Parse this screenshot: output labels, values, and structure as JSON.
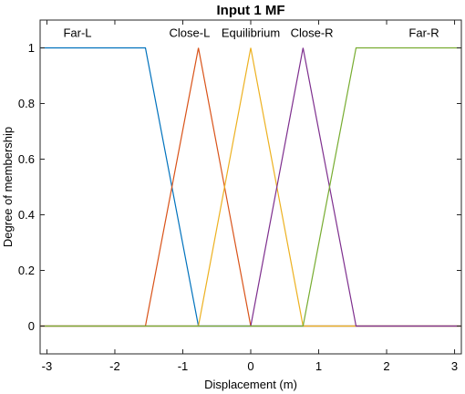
{
  "chart_data": {
    "type": "line",
    "title": "Input 1 MF",
    "xlabel": "Displacement (m)",
    "ylabel": "Degree of membership",
    "xlim": [
      -3.1,
      3.1
    ],
    "ylim": [
      -0.1,
      1.1
    ],
    "xticks": [
      -3,
      -2,
      -1,
      0,
      1,
      2,
      3
    ],
    "xtick_labels": [
      "-3",
      "-2",
      "-1",
      "0",
      "1",
      "2",
      "3"
    ],
    "yticks": [
      0,
      0.2,
      0.4,
      0.6,
      0.8,
      1
    ],
    "ytick_labels": [
      "0",
      "0.2",
      "0.4",
      "0.6",
      "0.8",
      "1"
    ],
    "grid": false,
    "series": [
      {
        "name": "Far-L",
        "color": "#0072BD",
        "x": [
          -3.1,
          -1.55,
          -0.77,
          3.1
        ],
        "y": [
          1,
          1,
          0,
          0
        ],
        "label_at": [
          -2.55,
          1.04
        ]
      },
      {
        "name": "Close-L",
        "color": "#D95319",
        "x": [
          -3.1,
          -1.55,
          -0.77,
          0,
          3.1
        ],
        "y": [
          0,
          0,
          1,
          0,
          0
        ],
        "label_at": [
          -0.9,
          1.04
        ]
      },
      {
        "name": "Equilibrium",
        "color": "#EDB120",
        "x": [
          -3.1,
          -0.77,
          0,
          0.77,
          3.1
        ],
        "y": [
          0,
          0,
          1,
          0,
          0
        ],
        "label_at": [
          0,
          1.04
        ]
      },
      {
        "name": "Close-R",
        "color": "#7E2F8E",
        "x": [
          -3.1,
          0,
          0.77,
          1.55,
          3.1
        ],
        "y": [
          0,
          0,
          1,
          0,
          0
        ],
        "label_at": [
          0.9,
          1.04
        ]
      },
      {
        "name": "Far-R",
        "color": "#77AC30",
        "x": [
          -3.1,
          0.77,
          1.55,
          3.1
        ],
        "y": [
          0,
          0,
          1,
          1
        ],
        "label_at": [
          2.55,
          1.04
        ]
      }
    ]
  }
}
